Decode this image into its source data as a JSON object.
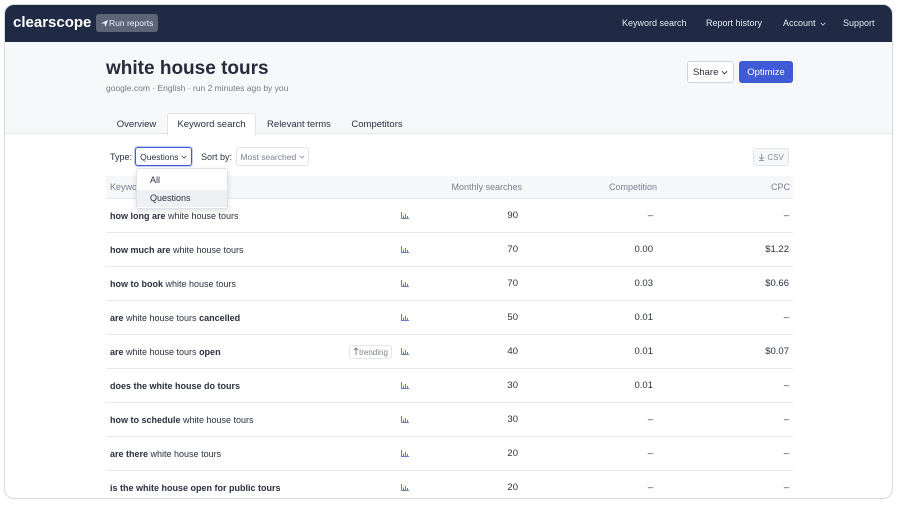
{
  "nav": {
    "brand": "clearscope",
    "run_reports": "Run reports",
    "links": [
      "Keyword search",
      "Report history",
      "Account",
      "Support"
    ]
  },
  "header": {
    "title": "white house tours",
    "meta": "google.com · English · run 2 minutes ago by you",
    "share": "Share",
    "optimize": "Optimize"
  },
  "tabs": {
    "items": [
      "Overview",
      "Keyword search",
      "Relevant terms",
      "Competitors"
    ],
    "active": 1
  },
  "filters": {
    "type_label": "Type:",
    "type_value": "Questions",
    "sort_label": "Sort by:",
    "sort_value": "Most searched",
    "csv": "CSV"
  },
  "dropdown": {
    "options": [
      "All",
      "Questions"
    ],
    "selected": 1
  },
  "table": {
    "columns": [
      "Keyword",
      "Monthly searches",
      "Competition",
      "CPC"
    ],
    "rows": [
      {
        "keyword": [
          {
            "text": "how long are",
            "bold": true
          },
          {
            "text": " white house tours",
            "bold": false
          }
        ],
        "trending": null,
        "searches": 90,
        "competition": "–",
        "cpc": "–"
      },
      {
        "keyword": [
          {
            "text": "how much are",
            "bold": true
          },
          {
            "text": " white house tours",
            "bold": false
          }
        ],
        "trending": null,
        "searches": 70,
        "competition": "0.00",
        "cpc": "$1.22"
      },
      {
        "keyword": [
          {
            "text": "how to book",
            "bold": true
          },
          {
            "text": " white house tours",
            "bold": false
          }
        ],
        "trending": null,
        "searches": 70,
        "competition": "0.03",
        "cpc": "$0.66"
      },
      {
        "keyword": [
          {
            "text": "are",
            "bold": true
          },
          {
            "text": " white house tours ",
            "bold": false
          },
          {
            "text": "cancelled",
            "bold": true
          }
        ],
        "trending": null,
        "searches": 50,
        "competition": "0.01",
        "cpc": "–"
      },
      {
        "keyword": [
          {
            "text": "are",
            "bold": true
          },
          {
            "text": " white house tours ",
            "bold": false
          },
          {
            "text": "open",
            "bold": true
          }
        ],
        "trending": "trending",
        "searches": 40,
        "competition": "0.01",
        "cpc": "$0.07"
      },
      {
        "keyword": [
          {
            "text": "does the white house do tours",
            "bold": true
          }
        ],
        "trending": null,
        "searches": 30,
        "competition": "0.01",
        "cpc": "–"
      },
      {
        "keyword": [
          {
            "text": "how to schedule",
            "bold": true
          },
          {
            "text": " white house tours",
            "bold": false
          }
        ],
        "trending": null,
        "searches": 30,
        "competition": "–",
        "cpc": "–"
      },
      {
        "keyword": [
          {
            "text": "are there",
            "bold": true
          },
          {
            "text": " white house tours",
            "bold": false
          }
        ],
        "trending": null,
        "searches": 20,
        "competition": "–",
        "cpc": "–"
      },
      {
        "keyword": [
          {
            "text": "is the white house open for public tours",
            "bold": true
          }
        ],
        "trending": null,
        "searches": 20,
        "competition": "–",
        "cpc": "–"
      }
    ]
  }
}
